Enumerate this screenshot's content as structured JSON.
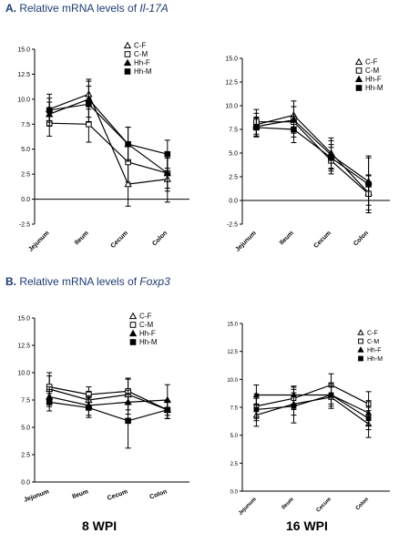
{
  "section_a": {
    "letter": "A.",
    "text": "Relative mRNA levels of",
    "gene": "Il-17A"
  },
  "section_b": {
    "letter": "B.",
    "text": "Relative mRNA levels of",
    "gene": "Foxp3"
  },
  "bottom_labels": {
    "left": "8 WPI",
    "right": "16 WPI"
  },
  "colors": {
    "line": "#000000",
    "axis": "#000000"
  },
  "chart_data": [
    {
      "id": "a-left",
      "type": "line",
      "categories": [
        "Jejunum",
        "Ileum",
        "Cecum",
        "Colon"
      ],
      "ylim": [
        -2.5,
        15.0
      ],
      "yticks": [
        -2.5,
        0.0,
        2.5,
        5.0,
        7.5,
        10.0,
        12.5,
        15.0
      ],
      "zero_line": true,
      "series": [
        {
          "name": "C-F",
          "marker": "triangle-open",
          "values": [
            9.0,
            10.5,
            1.5,
            2.0
          ],
          "errors": [
            1.5,
            1.5,
            2.2,
            2.3
          ]
        },
        {
          "name": "C-M",
          "marker": "square-open",
          "values": [
            7.6,
            7.5,
            3.7,
            2.6
          ],
          "errors": [
            1.3,
            1.8,
            2.0,
            1.8
          ]
        },
        {
          "name": "Hh-F",
          "marker": "triangle-filled",
          "values": [
            8.5,
            10.0,
            5.5,
            2.6
          ],
          "errors": [
            1.2,
            1.8,
            1.7,
            1.5
          ]
        },
        {
          "name": "Hh-M",
          "marker": "square-filled",
          "values": [
            8.9,
            9.5,
            5.5,
            4.5
          ],
          "errors": [
            1.2,
            1.8,
            1.7,
            1.4
          ]
        }
      ]
    },
    {
      "id": "a-right",
      "type": "line",
      "categories": [
        "Jejunum",
        "Ileum",
        "Cecum",
        "Colon"
      ],
      "ylim": [
        -2.5,
        15.0
      ],
      "yticks": [
        -2.5,
        0.0,
        2.5,
        5.0,
        7.5,
        10.0,
        12.5,
        15.0
      ],
      "zero_line": true,
      "series": [
        {
          "name": "C-F",
          "marker": "triangle-open",
          "values": [
            8.0,
            9.0,
            5.0,
            0.8
          ],
          "errors": [
            1.2,
            1.5,
            1.6,
            1.8
          ]
        },
        {
          "name": "C-M",
          "marker": "square-open",
          "values": [
            8.3,
            8.3,
            4.2,
            0.7
          ],
          "errors": [
            1.3,
            1.6,
            1.4,
            2.0
          ]
        },
        {
          "name": "Hh-F",
          "marker": "triangle-filled",
          "values": [
            7.8,
            8.5,
            4.8,
            2.0
          ],
          "errors": [
            1.0,
            1.4,
            1.5,
            2.5
          ]
        },
        {
          "name": "Hh-M",
          "marker": "square-filled",
          "values": [
            7.7,
            7.5,
            4.5,
            1.7
          ],
          "errors": [
            1.0,
            1.4,
            1.4,
            3.0
          ]
        }
      ]
    },
    {
      "id": "b-left",
      "type": "line",
      "categories": [
        "Jejunum",
        "Ileum",
        "Cecum",
        "Colon"
      ],
      "ylim": [
        0.0,
        15.0
      ],
      "yticks": [
        0.0,
        2.5,
        5.0,
        7.5,
        10.0,
        12.5,
        15.0
      ],
      "zero_line": false,
      "series": [
        {
          "name": "C-F",
          "marker": "triangle-open",
          "values": [
            8.5,
            7.5,
            8.0,
            6.6
          ],
          "errors": [
            1.2,
            0.8,
            1.4,
            0.8
          ]
        },
        {
          "name": "C-M",
          "marker": "square-open",
          "values": [
            8.7,
            8.0,
            8.3,
            6.6
          ],
          "errors": [
            1.3,
            0.7,
            1.2,
            0.8
          ]
        },
        {
          "name": "Hh-F",
          "marker": "triangle-filled",
          "values": [
            7.8,
            7.0,
            7.3,
            7.5
          ],
          "errors": [
            0.9,
            0.9,
            1.1,
            1.4
          ]
        },
        {
          "name": "Hh-M",
          "marker": "square-filled",
          "values": [
            7.3,
            6.8,
            5.6,
            6.6
          ],
          "errors": [
            0.8,
            0.9,
            2.5,
            0.8
          ]
        }
      ]
    },
    {
      "id": "b-right",
      "type": "line",
      "categories": [
        "Jejunum",
        "Ileum",
        "Cecum",
        "Colon"
      ],
      "ylim": [
        0.0,
        15.0
      ],
      "yticks": [
        0.0,
        2.5,
        5.0,
        7.5,
        10.0,
        12.5,
        15.0
      ],
      "zero_line": false,
      "series": [
        {
          "name": "C-F",
          "marker": "triangle-open",
          "values": [
            6.8,
            7.8,
            8.4,
            6.0
          ],
          "errors": [
            1.0,
            1.0,
            1.0,
            1.2
          ]
        },
        {
          "name": "C-M",
          "marker": "square-open",
          "values": [
            7.6,
            8.3,
            9.5,
            7.8
          ],
          "errors": [
            1.1,
            1.0,
            1.0,
            1.1
          ]
        },
        {
          "name": "Hh-F",
          "marker": "triangle-filled",
          "values": [
            8.6,
            8.6,
            8.6,
            7.0
          ],
          "errors": [
            0.9,
            0.8,
            0.8,
            1.1
          ]
        },
        {
          "name": "Hh-M",
          "marker": "square-filled",
          "values": [
            7.3,
            7.6,
            8.6,
            6.5
          ],
          "errors": [
            1.0,
            1.5,
            1.0,
            1.0
          ]
        }
      ]
    }
  ]
}
